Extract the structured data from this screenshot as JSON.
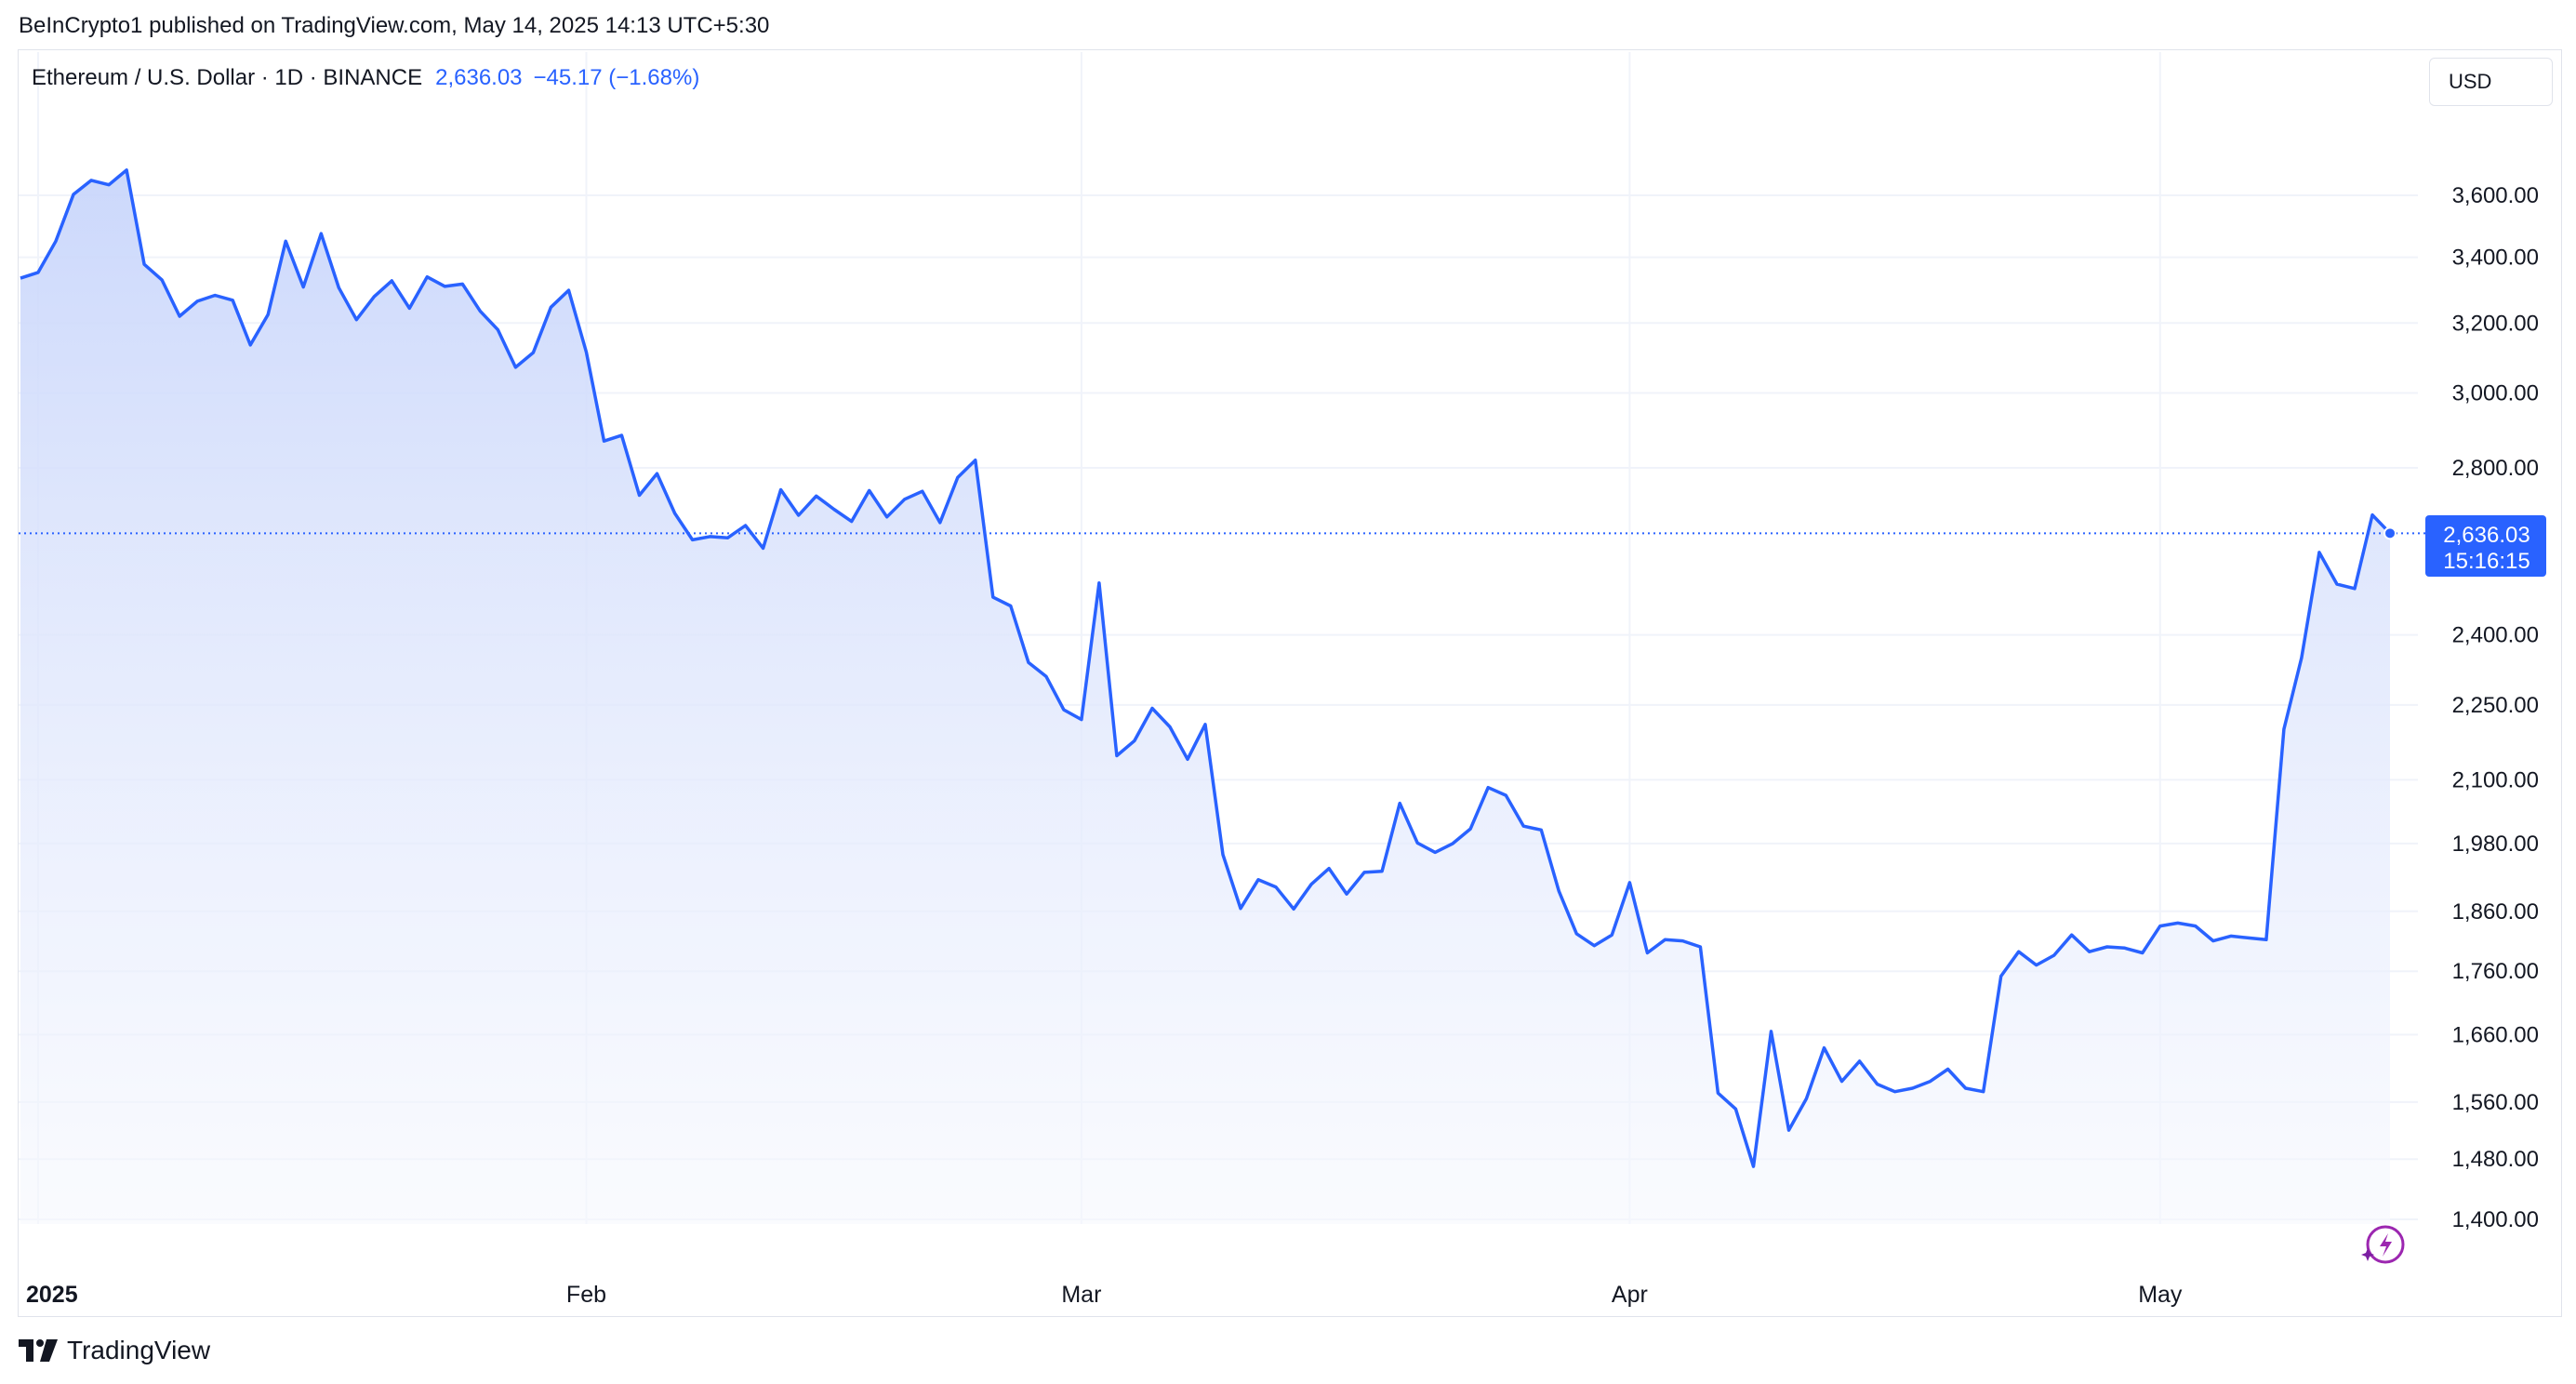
{
  "header": {
    "published": "BeInCrypto1 published on TradingView.com, May 14, 2025 14:13 UTC+5:30"
  },
  "legend": {
    "symbol": "Ethereum / U.S. Dollar · 1D · BINANCE",
    "price": "2,636.03",
    "change": "−45.17 (−1.68%)"
  },
  "currency_button": "USD",
  "price_label": {
    "price": "2,636.03",
    "countdown": "15:16:15"
  },
  "footer": {
    "brand": "TradingView"
  },
  "colors": {
    "line": "#2962ff",
    "fill_top": "#c9d6fb",
    "fill_bottom": "#f6f8fe",
    "grid": "#f0f3fa",
    "axis_text": "#131722"
  },
  "chart_data": {
    "type": "area",
    "title": "",
    "xlabel": "",
    "ylabel": "",
    "series": [
      {
        "name": "",
        "x": [
          "2024-12-31",
          "2025-01-01",
          "2025-01-02",
          "2025-01-03",
          "2025-01-04",
          "2025-01-05",
          "2025-01-06",
          "2025-01-07",
          "2025-01-08",
          "2025-01-09",
          "2025-01-10",
          "2025-01-11",
          "2025-01-12",
          "2025-01-13",
          "2025-01-14",
          "2025-01-15",
          "2025-01-16",
          "2025-01-17",
          "2025-01-18",
          "2025-01-19",
          "2025-01-20",
          "2025-01-21",
          "2025-01-22",
          "2025-01-23",
          "2025-01-24",
          "2025-01-25",
          "2025-01-26",
          "2025-01-27",
          "2025-01-28",
          "2025-01-29",
          "2025-01-30",
          "2025-01-31",
          "2025-02-01",
          "2025-02-02",
          "2025-02-03",
          "2025-02-04",
          "2025-02-05",
          "2025-02-06",
          "2025-02-07",
          "2025-02-08",
          "2025-02-09",
          "2025-02-10",
          "2025-02-11",
          "2025-02-12",
          "2025-02-13",
          "2025-02-14",
          "2025-02-15",
          "2025-02-16",
          "2025-02-17",
          "2025-02-18",
          "2025-02-19",
          "2025-02-20",
          "2025-02-21",
          "2025-02-22",
          "2025-02-23",
          "2025-02-24",
          "2025-02-25",
          "2025-02-26",
          "2025-02-27",
          "2025-02-28",
          "2025-03-01",
          "2025-03-02",
          "2025-03-03",
          "2025-03-04",
          "2025-03-05",
          "2025-03-06",
          "2025-03-07",
          "2025-03-08",
          "2025-03-09",
          "2025-03-10",
          "2025-03-11",
          "2025-03-12",
          "2025-03-13",
          "2025-03-14",
          "2025-03-15",
          "2025-03-16",
          "2025-03-17",
          "2025-03-18",
          "2025-03-19",
          "2025-03-20",
          "2025-03-21",
          "2025-03-22",
          "2025-03-23",
          "2025-03-24",
          "2025-03-25",
          "2025-03-26",
          "2025-03-27",
          "2025-03-28",
          "2025-03-29",
          "2025-03-30",
          "2025-03-31",
          "2025-04-01",
          "2025-04-02",
          "2025-04-03",
          "2025-04-04",
          "2025-04-05",
          "2025-04-06",
          "2025-04-07",
          "2025-04-08",
          "2025-04-09",
          "2025-04-10",
          "2025-04-11",
          "2025-04-12",
          "2025-04-13",
          "2025-04-14",
          "2025-04-15",
          "2025-04-16",
          "2025-04-17",
          "2025-04-18",
          "2025-04-19",
          "2025-04-20",
          "2025-04-21",
          "2025-04-22",
          "2025-04-23",
          "2025-04-24",
          "2025-04-25",
          "2025-04-26",
          "2025-04-27",
          "2025-04-28",
          "2025-04-29",
          "2025-04-30",
          "2025-05-01",
          "2025-05-02",
          "2025-05-03",
          "2025-05-04",
          "2025-05-05",
          "2025-05-06",
          "2025-05-07",
          "2025-05-08",
          "2025-05-09",
          "2025-05-10",
          "2025-05-11",
          "2025-05-12",
          "2025-05-13",
          "2025-05-14"
        ],
        "values": [
          3335,
          3353,
          3451,
          3603,
          3650,
          3635,
          3685,
          3378,
          3330,
          3220,
          3265,
          3283,
          3268,
          3136,
          3225,
          3451,
          3308,
          3475,
          3306,
          3210,
          3279,
          3327,
          3244,
          3339,
          3310,
          3317,
          3235,
          3180,
          3072,
          3114,
          3247,
          3298,
          3115,
          2870,
          2885,
          2730,
          2785,
          2685,
          2620,
          2628,
          2625,
          2655,
          2600,
          2744,
          2680,
          2728,
          2695,
          2665,
          2742,
          2676,
          2720,
          2740,
          2662,
          2775,
          2820,
          2485,
          2465,
          2340,
          2310,
          2240,
          2220,
          2518,
          2147,
          2177,
          2243,
          2205,
          2140,
          2210,
          1960,
          1865,
          1915,
          1902,
          1864,
          1907,
          1935,
          1890,
          1928,
          1930,
          2055,
          1981,
          1964,
          1980,
          2007,
          2085,
          2070,
          2012,
          2005,
          1895,
          1822,
          1802,
          1820,
          1910,
          1790,
          1812,
          1810,
          1800,
          1573,
          1550,
          1470,
          1665,
          1520,
          1565,
          1640,
          1590,
          1620,
          1586,
          1575,
          1580,
          1590,
          1608,
          1580,
          1575,
          1752,
          1792,
          1770,
          1786,
          1820,
          1792,
          1800,
          1798,
          1790,
          1835,
          1840,
          1835,
          1810,
          1818,
          1815,
          1812,
          2200,
          2350,
          2590,
          2515,
          2505,
          2681,
          2636
        ]
      }
    ],
    "ylim": [
      1350,
      3800
    ],
    "y_ticks": [
      "3,600.00",
      "3,400.00",
      "3,200.00",
      "3,000.00",
      "2,800.00",
      "2,400.00",
      "2,250.00",
      "2,100.00",
      "1,980.00",
      "1,860.00",
      "1,760.00",
      "1,660.00",
      "1,560.00",
      "1,480.00",
      "1,400.00"
    ],
    "y_tick_values": [
      3600,
      3400,
      3200,
      3000,
      2800,
      2400,
      2250,
      2100,
      1980,
      1860,
      1760,
      1660,
      1560,
      1480,
      1400
    ],
    "y_scale": "log",
    "x_ticks": [
      {
        "label": "2025",
        "date": "2025-01-01",
        "bold": true
      },
      {
        "label": "Feb",
        "date": "2025-02-01",
        "bold": false
      },
      {
        "label": "Mar",
        "date": "2025-03-01",
        "bold": false
      },
      {
        "label": "Apr",
        "date": "2025-04-01",
        "bold": false
      },
      {
        "label": "May",
        "date": "2025-05-01",
        "bold": false
      }
    ],
    "current_price": 2636.03,
    "grid": true
  }
}
